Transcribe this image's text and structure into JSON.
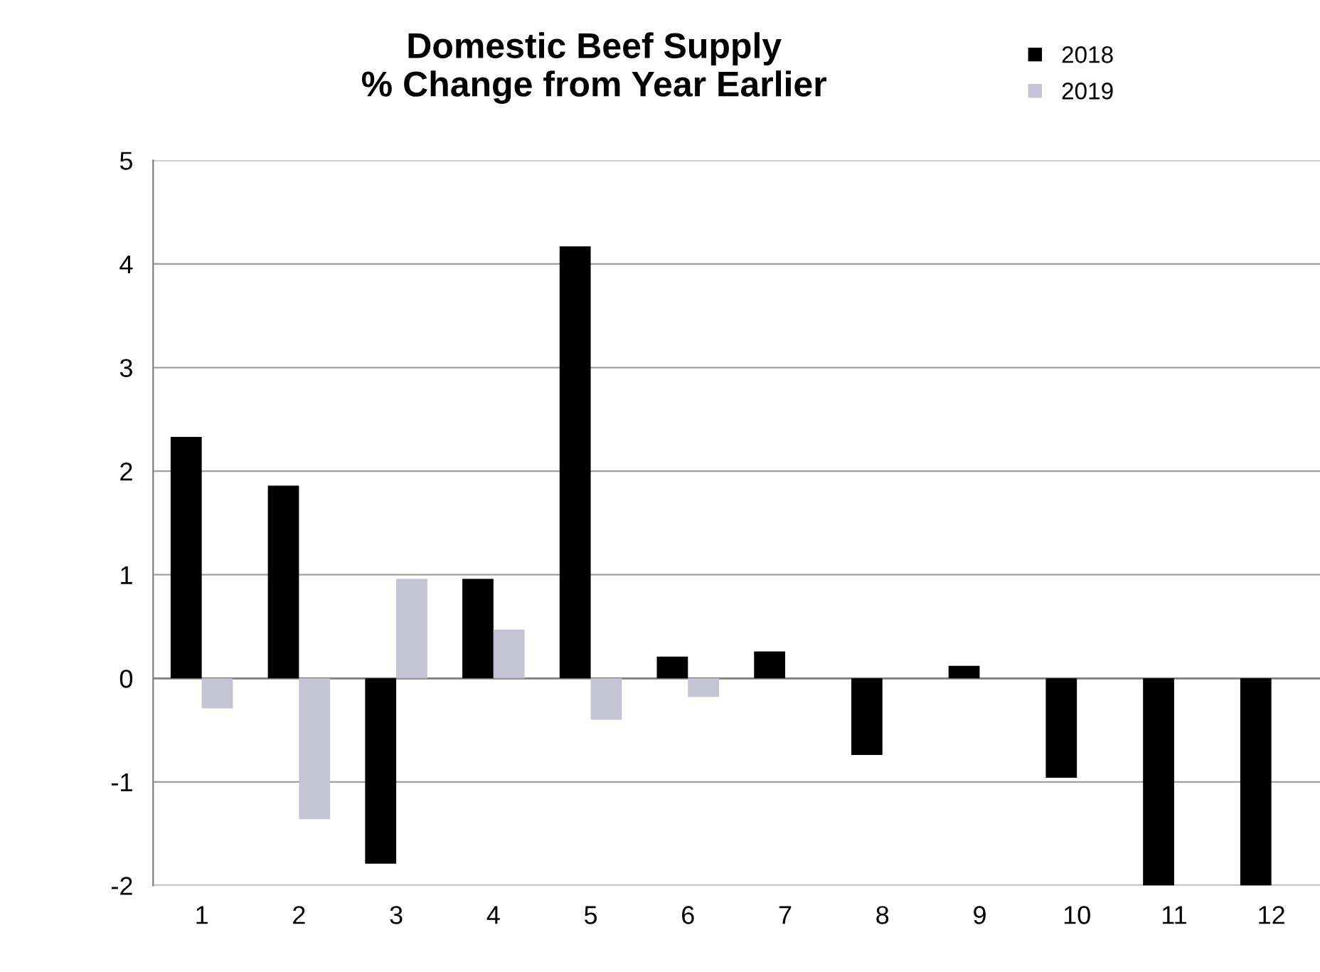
{
  "chart_data": {
    "type": "bar",
    "title": "Domestic Beef Supply\n% Change from Year Earlier",
    "categories": [
      "1",
      "2",
      "3",
      "4",
      "5",
      "6",
      "7",
      "8",
      "9",
      "10",
      "11",
      "12"
    ],
    "series": [
      {
        "name": "2018",
        "color": "#000000",
        "values": [
          2.33,
          1.86,
          -1.79,
          0.96,
          4.17,
          0.21,
          0.26,
          -0.74,
          0.12,
          -0.96,
          -2,
          -2
        ]
      },
      {
        "name": "2019",
        "color": "#c4c4d4",
        "values": [
          -0.29,
          -1.36,
          0.96,
          0.47,
          -0.4,
          -0.18,
          null,
          null,
          null,
          null,
          null,
          null
        ]
      }
    ],
    "ylim": [
      -2,
      5
    ],
    "yticks": [
      -2,
      -1,
      0,
      1,
      2,
      3,
      4,
      5
    ],
    "grid": "y",
    "legend": "top right"
  }
}
